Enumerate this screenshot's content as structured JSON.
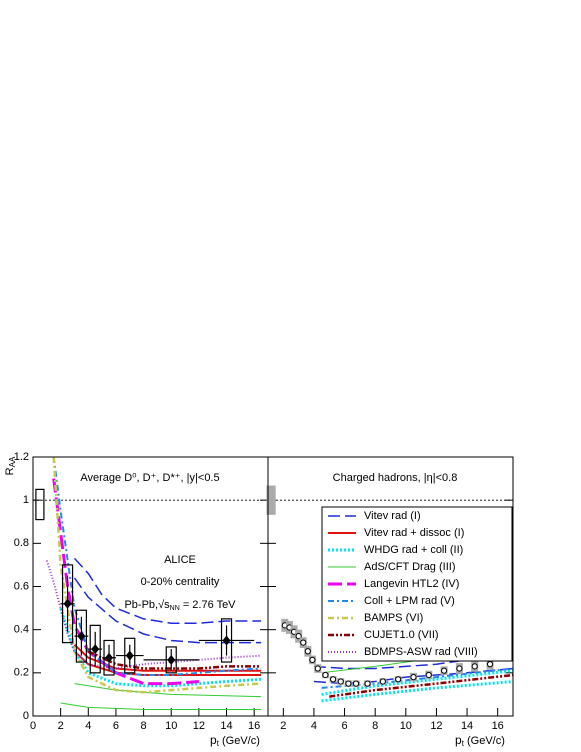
{
  "chart_data": [
    {
      "type": "scatter",
      "title": "Average D⁰, D⁺, D*⁺, |y|<0.5",
      "y_label": [
        "R",
        "AA"
      ],
      "x_label": [
        "p",
        "t",
        " (GeV/c)"
      ],
      "annotations": [
        "ALICE",
        "0-20% centrality"
      ],
      "energy_label": [
        "Pb-Pb,",
        "√s",
        "NN",
        " = 2.76 TeV"
      ],
      "xlim": [
        0,
        17
      ],
      "ylim": [
        0,
        1.2
      ],
      "xticks": [
        0,
        2,
        4,
        6,
        8,
        10,
        12,
        14,
        16
      ],
      "yticks": [
        0,
        0.2,
        0.4,
        0.6,
        0.8,
        1,
        1.2
      ],
      "reference_line": 1,
      "norm": {
        "value": 0.98,
        "error": 0.07,
        "x": 0.5,
        "color": "none"
      },
      "points": {
        "x": [
          2.5,
          3.5,
          4.5,
          5.5,
          7,
          10,
          14
        ],
        "xerr": [
          0.5,
          0.5,
          0.5,
          0.5,
          1,
          2,
          2
        ],
        "values": [
          0.52,
          0.37,
          0.31,
          0.27,
          0.28,
          0.26,
          0.35
        ],
        "yerr": [
          0.13,
          0.09,
          0.08,
          0.06,
          0.05,
          0.05,
          0.07
        ],
        "syst": [
          0.18,
          0.12,
          0.11,
          0.08,
          0.08,
          0.06,
          0.1
        ],
        "color": "#000000",
        "marker": "diamond"
      },
      "series": [
        {
          "color": "#1f2bd6",
          "dash": "12 5",
          "width": 1.5,
          "lines": [
            {
              "x": [
                3,
                4,
                5,
                6,
                8,
                10,
                12,
                14,
                16.5
              ],
              "values": [
                0.73,
                0.66,
                0.56,
                0.5,
                0.45,
                0.43,
                0.43,
                0.44,
                0.44
              ]
            },
            {
              "x": [
                3,
                4,
                6,
                8,
                10,
                12,
                14,
                16.5
              ],
              "values": [
                0.64,
                0.55,
                0.44,
                0.38,
                0.35,
                0.34,
                0.34,
                0.34
              ]
            }
          ]
        },
        {
          "color": "#e0100f",
          "dash": "",
          "width": 2,
          "lines": [
            {
              "x": [
                3,
                4,
                6,
                8,
                10,
                12,
                14,
                16.5
              ],
              "values": [
                0.33,
                0.27,
                0.22,
                0.21,
                0.21,
                0.21,
                0.21,
                0.21
              ]
            },
            {
              "x": [
                3,
                4,
                6,
                8,
                10,
                12,
                14,
                16.5
              ],
              "values": [
                0.3,
                0.24,
                0.2,
                0.19,
                0.19,
                0.19,
                0.19,
                0.19
              ]
            }
          ]
        },
        {
          "color": "#00e5ee",
          "dash": "2 2",
          "width": 3,
          "lines": [
            {
              "x": [
                2,
                3,
                4,
                6,
                8,
                10,
                12,
                14,
                16.5
              ],
              "values": [
                0.5,
                0.3,
                0.2,
                0.15,
                0.14,
                0.14,
                0.15,
                0.16,
                0.17
              ]
            }
          ]
        },
        {
          "color": "#33cc33",
          "dash": "",
          "width": 1,
          "lines": [
            {
              "x": [
                2,
                4,
                8,
                16.5
              ],
              "values": [
                0.06,
                0.04,
                0.03,
                0.03
              ]
            },
            {
              "x": [
                3,
                6,
                10,
                16.5
              ],
              "values": [
                0.15,
                0.12,
                0.1,
                0.09
              ]
            }
          ]
        },
        {
          "color": "#ee00ee",
          "dash": "14 5",
          "width": 3,
          "lines": [
            {
              "x": [
                1.5,
                2,
                2.5,
                3,
                4,
                5,
                6,
                8,
                10,
                12
              ],
              "values": [
                1.1,
                0.85,
                0.6,
                0.42,
                0.3,
                0.25,
                0.2,
                0.15,
                0.15,
                0.16
              ]
            }
          ]
        },
        {
          "color": "#2288ee",
          "dash": "6 3 2 3",
          "width": 2,
          "lines": [
            {
              "x": [
                1.5,
                2,
                3,
                4,
                6,
                8,
                10,
                12,
                14,
                16.5
              ],
              "values": [
                1.2,
                0.95,
                0.5,
                0.3,
                0.2,
                0.19,
                0.19,
                0.2,
                0.21,
                0.22
              ]
            }
          ]
        },
        {
          "color": "#c8c850",
          "dash": "6 3 2 3",
          "width": 2.5,
          "lines": [
            {
              "x": [
                1.5,
                2,
                3,
                4,
                6,
                8,
                10,
                12,
                14,
                16.5
              ],
              "values": [
                1.2,
                0.7,
                0.3,
                0.18,
                0.12,
                0.11,
                0.12,
                0.13,
                0.14,
                0.15
              ]
            }
          ]
        },
        {
          "color": "#8b0000",
          "dash": "6 2 2 2 2 2",
          "width": 2.5,
          "lines": [
            {
              "x": [
                4,
                6,
                8,
                10,
                12,
                14,
                16.5
              ],
              "values": [
                0.3,
                0.24,
                0.22,
                0.22,
                0.22,
                0.23,
                0.23
              ]
            }
          ]
        },
        {
          "color": "#9932cc",
          "dash": "1 2",
          "width": 2,
          "lines": [
            {
              "x": [
                1,
                1.5,
                2,
                2.5,
                3,
                4,
                6,
                8,
                10,
                12,
                14,
                16.5
              ],
              "values": [
                0.72,
                0.62,
                0.5,
                0.38,
                0.3,
                0.24,
                0.22,
                0.24,
                0.25,
                0.26,
                0.27,
                0.28
              ]
            }
          ]
        }
      ]
    },
    {
      "type": "scatter",
      "title": "Charged hadrons, |η|<0.8",
      "x_label": [
        "p",
        "t",
        " (GeV/c)"
      ],
      "xlim": [
        1,
        17
      ],
      "ylim": [
        0,
        1.2
      ],
      "xticks": [
        2,
        4,
        6,
        8,
        10,
        12,
        14,
        16
      ],
      "reference_line": 1,
      "norm": {
        "value": 1,
        "error": 0.065,
        "x": 1.2,
        "color": "#aaaaaa"
      },
      "points": {
        "x": [
          2.1,
          2.4,
          2.7,
          3.0,
          3.3,
          3.6,
          3.9,
          4.25,
          4.75,
          5.25,
          5.75,
          6.25,
          6.75,
          7.5,
          8.5,
          9.5,
          10.5,
          11.5,
          12.5,
          13.5,
          14.5,
          15.5
        ],
        "values": [
          0.42,
          0.41,
          0.39,
          0.37,
          0.34,
          0.3,
          0.26,
          0.22,
          0.19,
          0.17,
          0.16,
          0.15,
          0.15,
          0.15,
          0.16,
          0.17,
          0.18,
          0.19,
          0.21,
          0.22,
          0.23,
          0.24
        ],
        "syst": [
          0.03,
          0.03,
          0.03,
          0.03,
          0.025,
          0.025,
          0.02,
          0.02,
          0.015,
          0.015,
          0.015,
          0.015,
          0.015,
          0.015,
          0.015,
          0.015,
          0.02,
          0.02,
          0.02,
          0.025,
          0.025,
          0.025
        ],
        "color": "#000000",
        "marker": "circle"
      },
      "series": [
        {
          "name": "Vitev rad (I)",
          "color": "#1f2bd6",
          "dash": "12 5",
          "width": 1.5,
          "lines": [
            {
              "x": [
                4,
                6,
                8,
                10,
                12,
                14,
                17
              ],
              "values": [
                0.23,
                0.22,
                0.22,
                0.23,
                0.24,
                0.26,
                0.28
              ]
            },
            {
              "x": [
                4,
                6,
                8,
                10,
                12,
                14,
                17
              ],
              "values": [
                0.16,
                0.15,
                0.16,
                0.18,
                0.19,
                0.2,
                0.22
              ]
            }
          ]
        },
        {
          "name": "Vitev rad + dissoc (I)",
          "color": "#e0100f",
          "dash": "",
          "width": 2,
          "lines": []
        },
        {
          "name": "WHDG rad + coll (II)",
          "color": "#00e5ee",
          "dash": "2 2",
          "width": 3,
          "lines": [
            {
              "x": [
                4.5,
                8,
                12,
                17
              ],
              "values": [
                0.07,
                0.1,
                0.13,
                0.16
              ]
            },
            {
              "x": [
                4.5,
                8,
                12,
                17
              ],
              "values": [
                0.1,
                0.14,
                0.17,
                0.21
              ]
            }
          ]
        },
        {
          "name": "AdS/CFT Drag (III)",
          "color": "#33cc33",
          "dash": "",
          "width": 1,
          "lines": [
            {
              "x": [
                4.5,
                8,
                12,
                17
              ],
              "values": [
                0.2,
                0.23,
                0.27,
                0.32
              ]
            }
          ]
        },
        {
          "name": "Langevin HTL2 (IV)",
          "color": "#ee00ee",
          "dash": "14 5",
          "width": 3,
          "lines": []
        },
        {
          "name": "Coll + LPM rad (V)",
          "color": "#2288ee",
          "dash": "6 3 2 3",
          "width": 2,
          "lines": [
            {
              "x": [
                4.5,
                8,
                12,
                17
              ],
              "values": [
                0.13,
                0.15,
                0.18,
                0.22
              ]
            }
          ]
        },
        {
          "name": "BAMPS (VI)",
          "color": "#c8c850",
          "dash": "6 3 2 3",
          "width": 2.5,
          "lines": []
        },
        {
          "name": "CUJET1.0 (VII)",
          "color": "#8b0000",
          "dash": "6 2 2 2 2 2",
          "width": 2.5,
          "lines": [
            {
              "x": [
                5,
                8,
                12,
                17
              ],
              "values": [
                0.09,
                0.12,
                0.15,
                0.19
              ]
            }
          ]
        },
        {
          "name": "BDMPS-ASW rad (VIII)",
          "color": "#9932cc",
          "dash": "1 2",
          "width": 2,
          "lines": []
        }
      ]
    }
  ]
}
